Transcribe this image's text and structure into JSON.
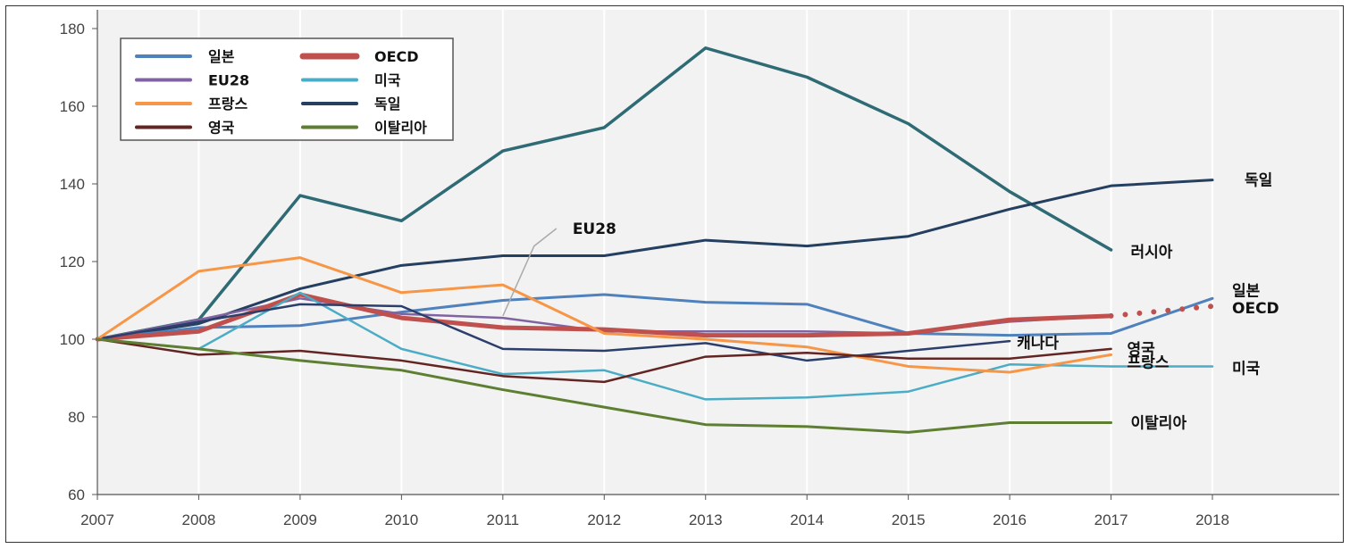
{
  "chart_data": {
    "type": "line",
    "x": [
      2007,
      2008,
      2009,
      2010,
      2011,
      2012,
      2013,
      2014,
      2015,
      2016,
      2017,
      2018
    ],
    "x_tick_labels": [
      "2007",
      "2008",
      "2009",
      "2010",
      "2011",
      "2012",
      "2013",
      "2014",
      "2015",
      "2016",
      "2017",
      "2018"
    ],
    "ylim": [
      60,
      180
    ],
    "y_ticks": [
      60,
      80,
      100,
      120,
      140,
      160,
      180
    ],
    "grid": "vertical",
    "background": "#f2f2f2",
    "legend_position": "top-left",
    "series": [
      {
        "name": "러시아",
        "color": "#2e6b75",
        "width": 3.5,
        "in_legend": false,
        "label": "러시아",
        "values": [
          100,
          105,
          137,
          130.5,
          148.5,
          154.5,
          175,
          167.5,
          155.5,
          138,
          123,
          null
        ]
      },
      {
        "name": "독일",
        "color": "#243f60",
        "width": 3,
        "in_legend": true,
        "label": "독일",
        "values": [
          100,
          104,
          113,
          119,
          121.5,
          121.5,
          125.5,
          124,
          126.5,
          133.5,
          139.5,
          141
        ]
      },
      {
        "name": "일본",
        "color": "#4f81bd",
        "width": 3,
        "in_legend": true,
        "label": "일본",
        "values": [
          100,
          103,
          103.5,
          107,
          110,
          111.5,
          109.5,
          109,
          101.5,
          101,
          101.5,
          110.5
        ]
      },
      {
        "name": "EU28",
        "color": "#8064a2",
        "width": 2.5,
        "in_legend": true,
        "label": "EU28",
        "values": [
          100,
          105,
          110.5,
          106.5,
          105.5,
          102,
          102,
          102,
          101.5,
          104.5,
          106,
          null
        ]
      },
      {
        "name": "OECD",
        "color": "#c0504d",
        "width": 5,
        "in_legend": true,
        "label": "OECD",
        "values": [
          100,
          102,
          111.5,
          105.5,
          103,
          102.5,
          101,
          101,
          101.5,
          105,
          106,
          null
        ],
        "projection": {
          "x": [
            2017,
            2018
          ],
          "values": [
            106,
            108.5
          ]
        }
      },
      {
        "name": "미국",
        "color": "#4bacc6",
        "width": 2.5,
        "in_legend": true,
        "label": "미국",
        "values": [
          100,
          97.5,
          112,
          97.5,
          91,
          92,
          84.5,
          85,
          86.5,
          93.5,
          93,
          93
        ]
      },
      {
        "name": "캐나다",
        "color": "#2c3e6b",
        "width": 2.5,
        "in_legend": false,
        "label": "캐나다",
        "values": [
          100,
          104.5,
          109,
          108.5,
          97.5,
          97,
          99,
          94.5,
          97,
          99.5,
          null,
          null
        ]
      },
      {
        "name": "프랑스",
        "color": "#f79646",
        "width": 3,
        "in_legend": true,
        "label": "프랑스",
        "values": [
          100,
          117.5,
          121,
          112,
          114,
          101.5,
          100,
          98,
          93,
          91.5,
          96,
          null
        ]
      },
      {
        "name": "영국",
        "color": "#632523",
        "width": 2.5,
        "in_legend": true,
        "label": "영국",
        "values": [
          100,
          96,
          97,
          94.5,
          90.5,
          89,
          95.5,
          96.5,
          95,
          95,
          97.5,
          null
        ]
      },
      {
        "name": "이탈리아",
        "color": "#5e7f32",
        "width": 3,
        "in_legend": true,
        "label": "이탈리아",
        "values": [
          100,
          97.5,
          94.5,
          92,
          87,
          82.5,
          78,
          77.5,
          76,
          78.5,
          78.5,
          null
        ]
      }
    ],
    "annotations": [
      {
        "text": "EU28",
        "points_to": {
          "x": 2011,
          "y": 106
        }
      }
    ],
    "legend": {
      "columns": [
        [
          "일본",
          "EU28",
          "프랑스",
          "영국"
        ],
        [
          "OECD",
          "미국",
          "독일",
          "이탈리아"
        ]
      ]
    }
  }
}
